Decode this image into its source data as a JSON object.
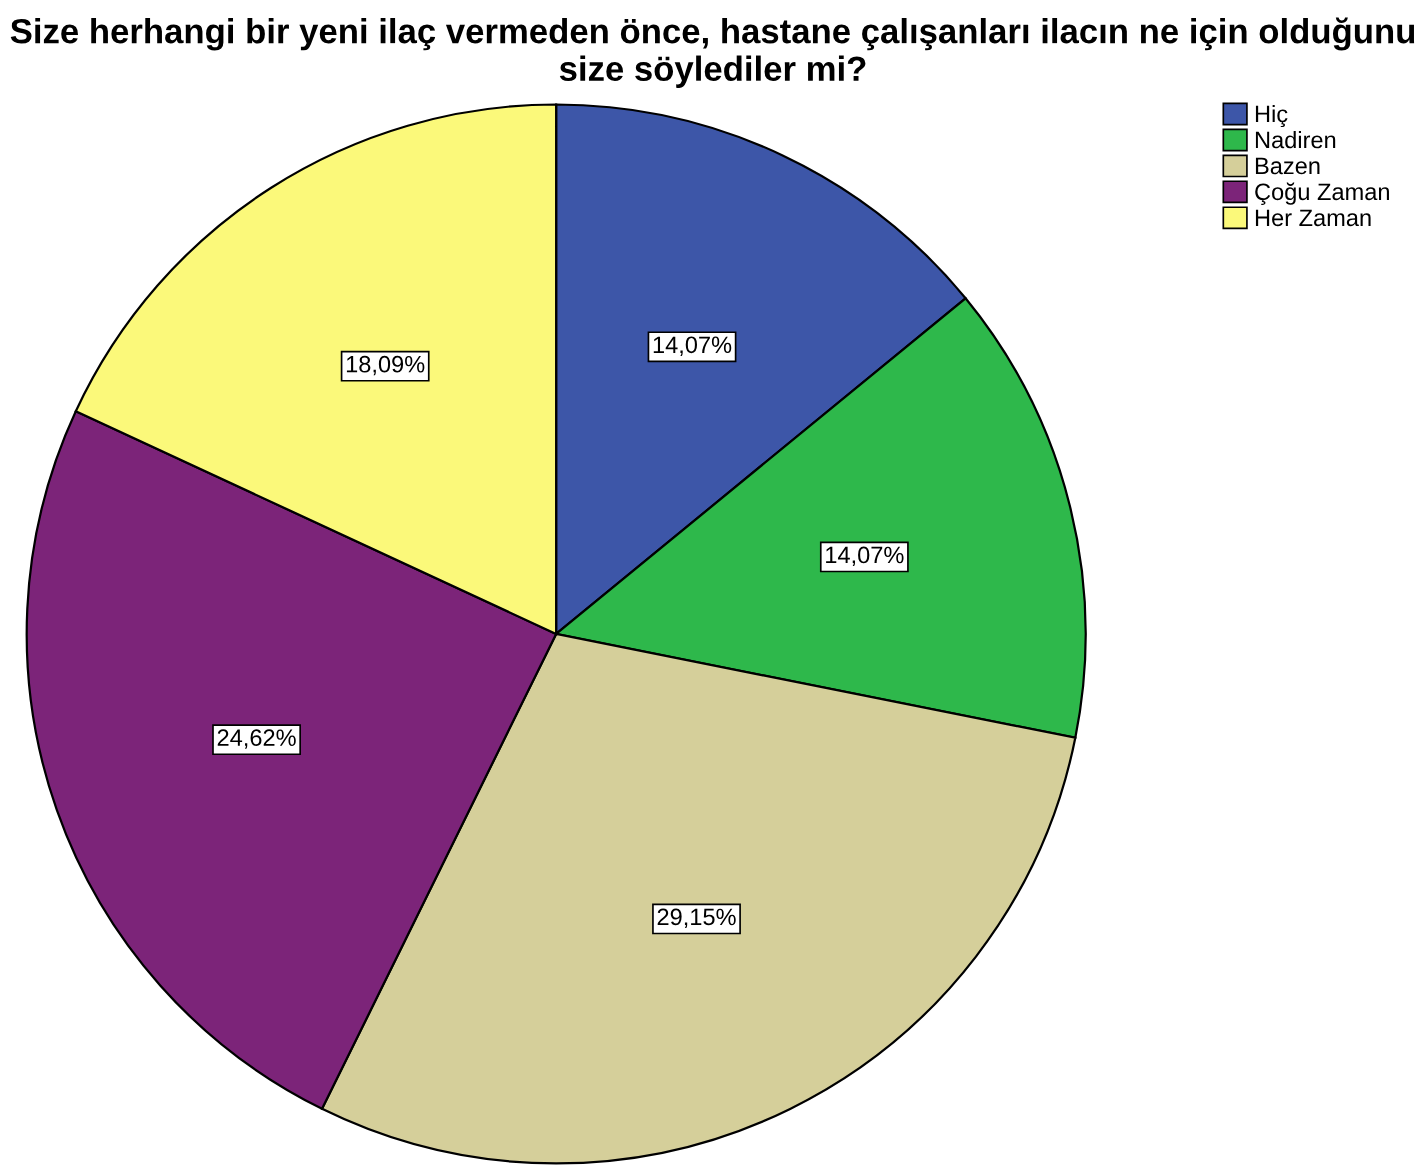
{
  "chart_data": {
    "type": "pie",
    "title": "Size herhangi bir yeni ilaç vermeden önce, hastane çalışanları ilacın ne için olduğunu size söylediler mi?",
    "categories": [
      "Hiç",
      "Nadiren",
      "Bazen",
      "Çoğu Zaman",
      "Her Zaman"
    ],
    "values": [
      14.07,
      14.07,
      29.15,
      24.62,
      18.09
    ],
    "colors": [
      "#3d56a8",
      "#2eb84b",
      "#d5cf9a",
      "#7c2479",
      "#fbf97a"
    ],
    "value_labels": [
      "14,07%",
      "14,07%",
      "29,15%",
      "24,62%",
      "18,09%"
    ],
    "legend": "top right"
  }
}
